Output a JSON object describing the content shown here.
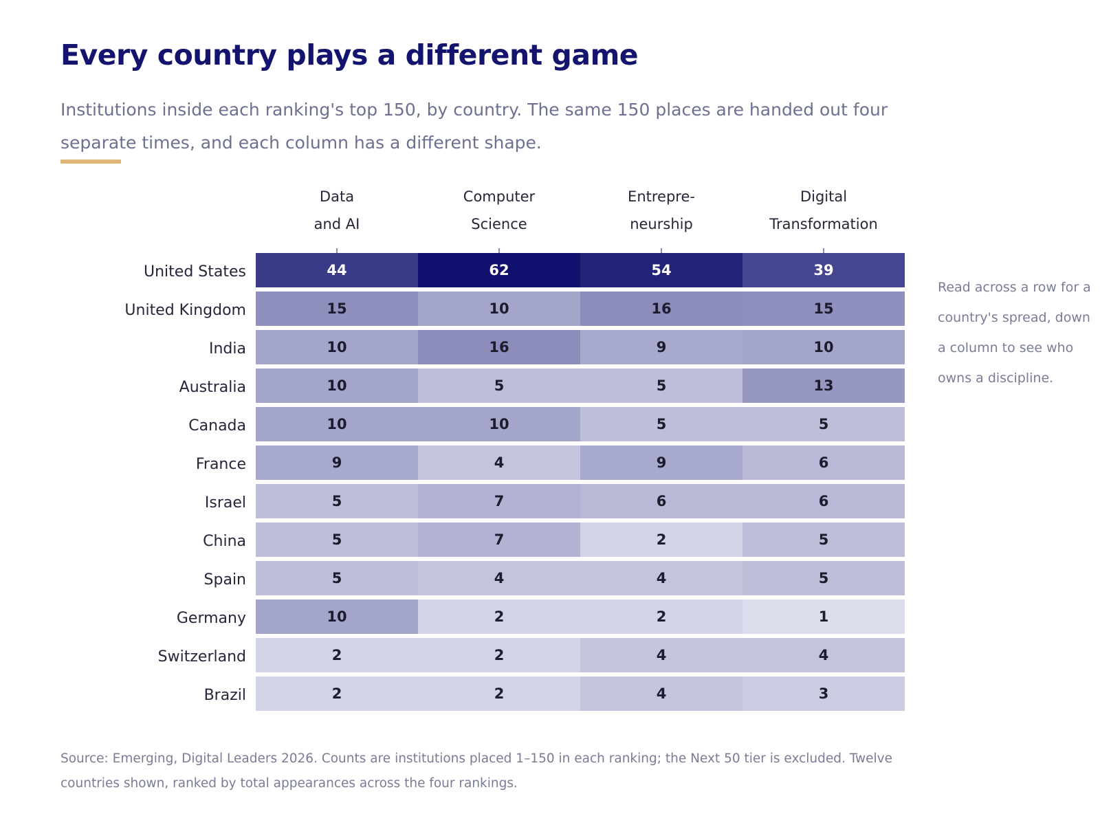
{
  "header": {
    "title": "Every country plays a different game",
    "subtitle": "Institutions inside each ranking's top 150, by country. The same 150 places are handed out four separate times, and each column has a different shape."
  },
  "side_note": "Read across a row for a country's spread, down a column to see who owns a discipline.",
  "source_note": "Source: Emerging, Digital Leaders 2026. Counts are institutions placed 1–150 in each ranking; the Next 50 tier is excluded. Twelve countries shown, ranked by total appearances across the four rankings.",
  "colors": {
    "title": "#14146e",
    "accent": "#ddb877",
    "scale_low": "#eef0f8",
    "scale_high": "#10106e"
  },
  "chart_data": {
    "type": "heatmap",
    "columns": [
      [
        "Data",
        "and AI"
      ],
      [
        "Computer",
        "Science"
      ],
      [
        "Entrepre-",
        "neurship"
      ],
      [
        "Digital",
        "Transformation"
      ]
    ],
    "rows": [
      "United States",
      "United Kingdom",
      "India",
      "Australia",
      "Canada",
      "France",
      "Israel",
      "China",
      "Spain",
      "Germany",
      "Switzerland",
      "Brazil"
    ],
    "values": [
      [
        44,
        62,
        54,
        39
      ],
      [
        15,
        10,
        16,
        15
      ],
      [
        10,
        16,
        9,
        10
      ],
      [
        10,
        5,
        5,
        13
      ],
      [
        10,
        10,
        5,
        5
      ],
      [
        9,
        4,
        9,
        6
      ],
      [
        5,
        7,
        6,
        6
      ],
      [
        5,
        7,
        2,
        5
      ],
      [
        5,
        4,
        4,
        5
      ],
      [
        10,
        2,
        2,
        1
      ],
      [
        2,
        2,
        4,
        4
      ],
      [
        2,
        2,
        4,
        3
      ]
    ]
  }
}
